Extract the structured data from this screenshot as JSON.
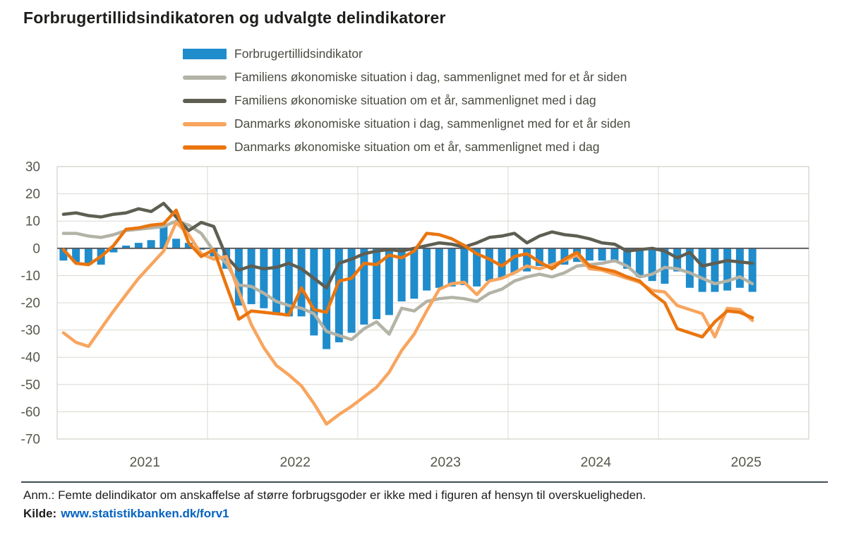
{
  "title": "Forbrugertillidsindikatoren og udvalgte delindikatorer",
  "colors": {
    "bar_blue": "#1f8ccc",
    "light_gray_line": "#b3b3a6",
    "dark_gray_line": "#5e5e52",
    "light_orange_line": "#f8a55e",
    "dark_orange_line": "#ea750e",
    "gridline": "#d8d8d0",
    "plot_border": "#c7c7bd",
    "zero_line": "#55565a",
    "axis_text": "#57574d",
    "link_blue": "#0563c1",
    "divider": "#3f4f57"
  },
  "chart_data": {
    "type": "bar",
    "subtype": "combo-bar-line",
    "time_range": {
      "start": "2021-01",
      "end": "2025-08",
      "frequency": "monthly"
    },
    "x_tick_labels": [
      "2021",
      "2022",
      "2023",
      "2024",
      "2025"
    ],
    "axis_span_months": 60,
    "ylim": [
      -70,
      30
    ],
    "y_ticks": [
      30,
      20,
      10,
      0,
      -10,
      -20,
      -30,
      -40,
      -50,
      -60,
      -70
    ],
    "grid": true,
    "legend_position": "top",
    "series": [
      {
        "name": "Forbrugertillidsindikator",
        "type": "bar",
        "color": "#1f8ccc",
        "values": [
          -4.5,
          -5,
          -6,
          -6,
          -1.5,
          1,
          2,
          3,
          8.5,
          3.5,
          2,
          -0.5,
          -3,
          -7.5,
          -21,
          -20.5,
          -22,
          -24.5,
          -25,
          -25,
          -32,
          -37,
          -34.5,
          -31,
          -28,
          -26,
          -24.5,
          -19.5,
          -18.5,
          -15.5,
          -14.5,
          -14,
          -13.5,
          -14,
          -12,
          -11,
          -9,
          -8.5,
          -6.5,
          -7.5,
          -6,
          -5,
          -4.5,
          -4.5,
          -5,
          -7.5,
          -10.5,
          -12,
          -13,
          -8.5,
          -14.5,
          -16,
          -16,
          -15.5,
          -14.5,
          -16
        ]
      },
      {
        "name": "Familiens økonomiske situation i dag, sammenlignet med for et år siden",
        "type": "line",
        "color": "#b3b3a6",
        "values": [
          5.5,
          5.5,
          4.5,
          4,
          5,
          6.5,
          7,
          7.5,
          8,
          10,
          8.5,
          5.5,
          -1,
          -5.5,
          -13.5,
          -14,
          -16.5,
          -19.5,
          -21,
          -22,
          -24,
          -30.5,
          -32,
          -33.5,
          -29.5,
          -27,
          -31.5,
          -22,
          -23,
          -19.5,
          -18.5,
          -18,
          -18.5,
          -19.5,
          -16.5,
          -15,
          -12,
          -10.5,
          -9.5,
          -10.5,
          -9,
          -6.5,
          -6,
          -5.5,
          -4.5,
          -6.5,
          -10.5,
          -9.5,
          -7,
          -7.5,
          -9,
          -11,
          -13,
          -12,
          -10.5,
          -13
        ]
      },
      {
        "name": "Familiens økonomiske situation om et år, sammenlignet med i dag",
        "type": "line",
        "color": "#5e5e52",
        "values": [
          12.5,
          13,
          12,
          11.5,
          12.5,
          13,
          14.5,
          13.5,
          16.5,
          11.5,
          6.5,
          9.5,
          8,
          -3,
          -8,
          -6.5,
          -7.5,
          -7,
          -5.5,
          -7.5,
          -11,
          -14.5,
          -5.5,
          -4,
          -2,
          -1,
          -0.5,
          -1,
          0,
          1,
          2,
          1.5,
          0.5,
          2,
          4,
          4.5,
          5.5,
          2,
          4.5,
          6,
          5,
          4.5,
          3.5,
          2,
          1.5,
          -1,
          -0.5,
          0,
          -1,
          -3.5,
          -1.5,
          -6.5,
          -5.5,
          -4.5,
          -5,
          -5.5
        ]
      },
      {
        "name": "Danmarks økonomiske situation i dag, sammenlignet med for et år siden",
        "type": "line",
        "color": "#f8a55e",
        "values": [
          -31,
          -34.5,
          -36,
          -29.5,
          -23,
          -17,
          -11,
          -6,
          -1,
          9.5,
          5,
          -2,
          -4,
          -3,
          -16,
          -28,
          -36.5,
          -43,
          -46.5,
          -50.5,
          -57,
          -64.5,
          -61,
          -58,
          -54.5,
          -51,
          -45.5,
          -37.5,
          -31.5,
          -23,
          -15,
          -13,
          -12.5,
          -17,
          -12,
          -11,
          -9,
          -6.5,
          -7.5,
          -6,
          -4.5,
          -2.5,
          -7.5,
          -8,
          -9.5,
          -11,
          -12.5,
          -15.5,
          -16,
          -21,
          -22.5,
          -24,
          -32.5,
          -22,
          -22.5,
          -26.5
        ]
      },
      {
        "name": "Danmarks økonomiske situation om et år, sammenlignet med i dag",
        "type": "line",
        "color": "#ea750e",
        "values": [
          -0.5,
          -5.5,
          -6,
          -3,
          1,
          7,
          7.5,
          8.5,
          9,
          14,
          2,
          -3,
          -0.5,
          -13.5,
          -26,
          -23,
          -23.5,
          -24,
          -24.5,
          -14.5,
          -22.5,
          -23.5,
          -12,
          -11,
          -5.5,
          -6,
          -2.5,
          -3.5,
          -1,
          5.5,
          5,
          3.5,
          1,
          -2,
          -4,
          -6.5,
          -3,
          -2,
          -5,
          -7.5,
          -4,
          -1.5,
          -6.5,
          -7.5,
          -8.5,
          -10.5,
          -12,
          -16.5,
          -20,
          -29.5,
          -31,
          -32.5,
          -27,
          -23,
          -23.5,
          -25.5
        ]
      }
    ]
  },
  "footer": {
    "note": "Anm.: Femte delindikator om anskaffelse af større forbrugsgoder er ikke med i figuren af hensyn til overskueligheden.",
    "source_label": "Kilde:",
    "source_link_text": "www.statistikbanken.dk/forv1"
  }
}
